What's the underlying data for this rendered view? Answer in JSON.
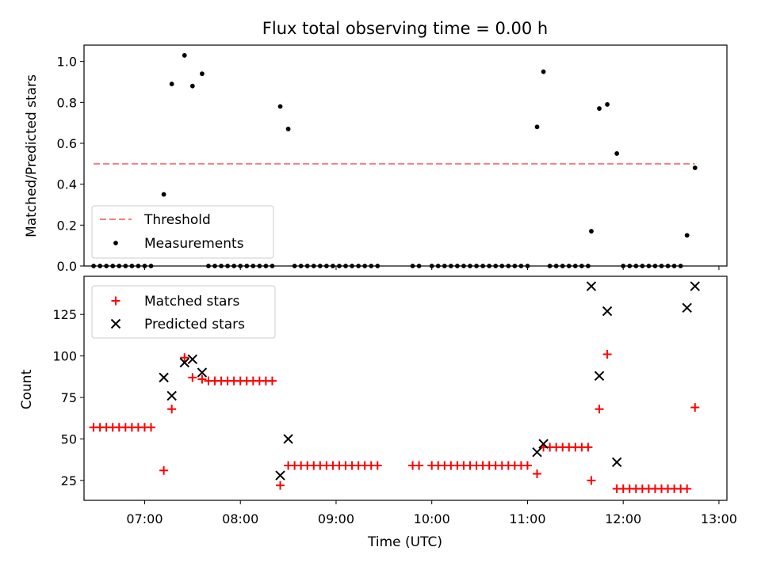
{
  "chart_data": [
    {
      "type": "scatter",
      "title": "Flux total observing time = 0.00 h",
      "ylabel": "Matched/Predicted stars",
      "xlim": [
        "06:22",
        "13:05"
      ],
      "ylim": [
        0,
        1.08
      ],
      "yticks": [
        0.0,
        0.2,
        0.4,
        0.6,
        0.8,
        1.0
      ],
      "ytick_labels": [
        "0.0",
        "0.2",
        "0.4",
        "0.6",
        "0.8",
        "1.0"
      ],
      "legend": {
        "position": "lower-left",
        "entries": [
          {
            "label": "Threshold",
            "style": "dashed-line",
            "color": "#f08080"
          },
          {
            "label": "Measurements",
            "style": "dot",
            "color": "#000000"
          }
        ]
      },
      "threshold": {
        "name": "Threshold",
        "y": 0.5,
        "x_start": "06:28",
        "x_end": "12:45"
      },
      "series": [
        {
          "name": "Measurements",
          "marker": "dot",
          "color": "#000000",
          "points": [
            [
              "06:28",
              0
            ],
            [
              "06:32",
              0
            ],
            [
              "06:36",
              0
            ],
            [
              "06:40",
              0
            ],
            [
              "06:44",
              0
            ],
            [
              "06:48",
              0
            ],
            [
              "06:52",
              0
            ],
            [
              "06:56",
              0
            ],
            [
              "07:00",
              0
            ],
            [
              "07:04",
              0
            ],
            [
              "07:12",
              0.35
            ],
            [
              "07:17",
              0.89
            ],
            [
              "07:25",
              1.03
            ],
            [
              "07:30",
              0.88
            ],
            [
              "07:36",
              0.94
            ],
            [
              "07:40",
              0
            ],
            [
              "07:44",
              0
            ],
            [
              "07:48",
              0
            ],
            [
              "07:52",
              0
            ],
            [
              "07:56",
              0
            ],
            [
              "08:00",
              0
            ],
            [
              "08:04",
              0
            ],
            [
              "08:08",
              0
            ],
            [
              "08:12",
              0
            ],
            [
              "08:16",
              0
            ],
            [
              "08:20",
              0
            ],
            [
              "08:25",
              0.78
            ],
            [
              "08:30",
              0.67
            ],
            [
              "08:34",
              0
            ],
            [
              "08:38",
              0
            ],
            [
              "08:42",
              0
            ],
            [
              "08:46",
              0
            ],
            [
              "08:50",
              0
            ],
            [
              "08:54",
              0
            ],
            [
              "08:58",
              0
            ],
            [
              "09:02",
              0
            ],
            [
              "09:06",
              0
            ],
            [
              "09:10",
              0
            ],
            [
              "09:14",
              0
            ],
            [
              "09:18",
              0
            ],
            [
              "09:22",
              0
            ],
            [
              "09:26",
              0
            ],
            [
              "09:48",
              0
            ],
            [
              "09:52",
              0
            ],
            [
              "10:00",
              0
            ],
            [
              "10:04",
              0
            ],
            [
              "10:08",
              0
            ],
            [
              "10:12",
              0
            ],
            [
              "10:16",
              0
            ],
            [
              "10:20",
              0
            ],
            [
              "10:24",
              0
            ],
            [
              "10:28",
              0
            ],
            [
              "10:32",
              0
            ],
            [
              "10:36",
              0
            ],
            [
              "10:40",
              0
            ],
            [
              "10:44",
              0
            ],
            [
              "10:48",
              0
            ],
            [
              "10:52",
              0
            ],
            [
              "10:56",
              0
            ],
            [
              "11:00",
              0
            ],
            [
              "11:06",
              0.68
            ],
            [
              "11:10",
              0.95
            ],
            [
              "11:14",
              0
            ],
            [
              "11:18",
              0
            ],
            [
              "11:22",
              0
            ],
            [
              "11:26",
              0
            ],
            [
              "11:30",
              0
            ],
            [
              "11:34",
              0
            ],
            [
              "11:38",
              0
            ],
            [
              "11:40",
              0.17
            ],
            [
              "11:45",
              0.77
            ],
            [
              "11:50",
              0.79
            ],
            [
              "11:56",
              0.55
            ],
            [
              "12:00",
              0
            ],
            [
              "12:04",
              0
            ],
            [
              "12:08",
              0
            ],
            [
              "12:12",
              0
            ],
            [
              "12:16",
              0
            ],
            [
              "12:20",
              0
            ],
            [
              "12:24",
              0
            ],
            [
              "12:28",
              0
            ],
            [
              "12:32",
              0
            ],
            [
              "12:36",
              0
            ],
            [
              "12:40",
              0.15
            ],
            [
              "12:45",
              0.48
            ]
          ]
        }
      ]
    },
    {
      "type": "scatter",
      "xlabel": "Time (UTC)",
      "ylabel": "Count",
      "xlim": [
        "06:22",
        "13:05"
      ],
      "ylim": [
        13,
        148
      ],
      "xticks": [
        "07:00",
        "08:00",
        "09:00",
        "10:00",
        "11:00",
        "12:00",
        "13:00"
      ],
      "yticks": [
        25,
        50,
        75,
        100,
        125
      ],
      "ytick_labels": [
        "25",
        "50",
        "75",
        "100",
        "125"
      ],
      "legend": {
        "position": "upper-left",
        "entries": [
          {
            "label": "Matched stars",
            "style": "plus",
            "color": "#ff0000"
          },
          {
            "label": "Predicted stars",
            "style": "cross",
            "color": "#000000"
          }
        ]
      },
      "series": [
        {
          "name": "Matched stars",
          "marker": "plus",
          "color": "#ff0000",
          "points": [
            [
              "06:28",
              57
            ],
            [
              "06:32",
              57
            ],
            [
              "06:36",
              57
            ],
            [
              "06:40",
              57
            ],
            [
              "06:44",
              57
            ],
            [
              "06:48",
              57
            ],
            [
              "06:52",
              57
            ],
            [
              "06:56",
              57
            ],
            [
              "07:00",
              57
            ],
            [
              "07:04",
              57
            ],
            [
              "07:12",
              31
            ],
            [
              "07:17",
              68
            ],
            [
              "07:25",
              99
            ],
            [
              "07:30",
              87
            ],
            [
              "07:36",
              86
            ],
            [
              "07:40",
              85
            ],
            [
              "07:44",
              85
            ],
            [
              "07:48",
              85
            ],
            [
              "07:52",
              85
            ],
            [
              "07:56",
              85
            ],
            [
              "08:00",
              85
            ],
            [
              "08:04",
              85
            ],
            [
              "08:08",
              85
            ],
            [
              "08:12",
              85
            ],
            [
              "08:16",
              85
            ],
            [
              "08:20",
              85
            ],
            [
              "08:25",
              22
            ],
            [
              "08:30",
              34
            ],
            [
              "08:34",
              34
            ],
            [
              "08:38",
              34
            ],
            [
              "08:42",
              34
            ],
            [
              "08:46",
              34
            ],
            [
              "08:50",
              34
            ],
            [
              "08:54",
              34
            ],
            [
              "08:58",
              34
            ],
            [
              "09:02",
              34
            ],
            [
              "09:06",
              34
            ],
            [
              "09:10",
              34
            ],
            [
              "09:14",
              34
            ],
            [
              "09:18",
              34
            ],
            [
              "09:22",
              34
            ],
            [
              "09:26",
              34
            ],
            [
              "09:48",
              34
            ],
            [
              "09:52",
              34
            ],
            [
              "10:00",
              34
            ],
            [
              "10:04",
              34
            ],
            [
              "10:08",
              34
            ],
            [
              "10:12",
              34
            ],
            [
              "10:16",
              34
            ],
            [
              "10:20",
              34
            ],
            [
              "10:24",
              34
            ],
            [
              "10:28",
              34
            ],
            [
              "10:32",
              34
            ],
            [
              "10:36",
              34
            ],
            [
              "10:40",
              34
            ],
            [
              "10:44",
              34
            ],
            [
              "10:48",
              34
            ],
            [
              "10:52",
              34
            ],
            [
              "10:56",
              34
            ],
            [
              "11:00",
              34
            ],
            [
              "11:06",
              29
            ],
            [
              "11:10",
              45
            ],
            [
              "11:14",
              45
            ],
            [
              "11:18",
              45
            ],
            [
              "11:22",
              45
            ],
            [
              "11:26",
              45
            ],
            [
              "11:30",
              45
            ],
            [
              "11:34",
              45
            ],
            [
              "11:38",
              45
            ],
            [
              "11:40",
              25
            ],
            [
              "11:45",
              68
            ],
            [
              "11:50",
              101
            ],
            [
              "11:56",
              20
            ],
            [
              "12:00",
              20
            ],
            [
              "12:04",
              20
            ],
            [
              "12:08",
              20
            ],
            [
              "12:12",
              20
            ],
            [
              "12:16",
              20
            ],
            [
              "12:20",
              20
            ],
            [
              "12:24",
              20
            ],
            [
              "12:28",
              20
            ],
            [
              "12:32",
              20
            ],
            [
              "12:36",
              20
            ],
            [
              "12:40",
              20
            ],
            [
              "12:45",
              69
            ]
          ]
        },
        {
          "name": "Predicted stars",
          "marker": "cross",
          "color": "#000000",
          "points": [
            [
              "07:12",
              87
            ],
            [
              "07:17",
              76
            ],
            [
              "07:25",
              96
            ],
            [
              "07:30",
              98
            ],
            [
              "07:36",
              90
            ],
            [
              "08:25",
              28
            ],
            [
              "08:30",
              50
            ],
            [
              "11:06",
              42
            ],
            [
              "11:10",
              47
            ],
            [
              "11:40",
              142
            ],
            [
              "11:45",
              88
            ],
            [
              "11:50",
              127
            ],
            [
              "11:56",
              36
            ],
            [
              "12:40",
              129
            ],
            [
              "12:45",
              142
            ]
          ]
        }
      ]
    }
  ]
}
